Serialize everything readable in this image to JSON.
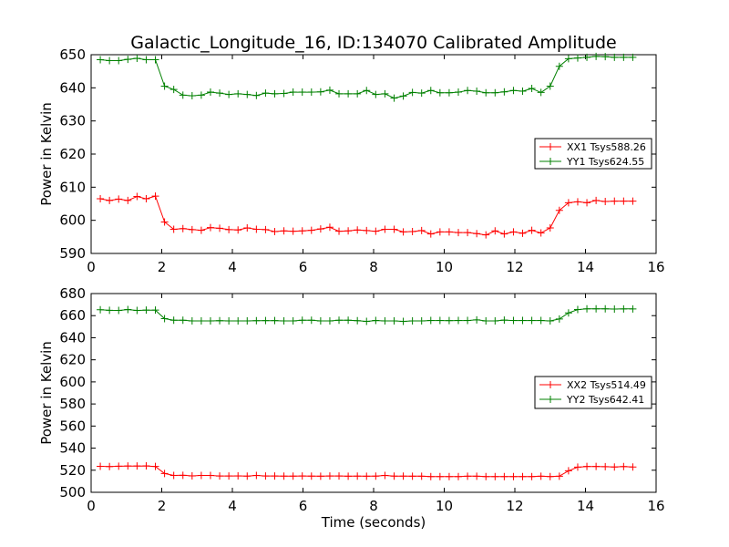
{
  "figure": {
    "title": "Galactic_Longitude_16, ID:134070 Calibrated Amplitude"
  },
  "chart_data": [
    {
      "type": "line",
      "title": "Galactic_Longitude_16, ID:134070 Calibrated Amplitude",
      "xlabel": "",
      "ylabel": "Power in Kelvin",
      "xlim": [
        0,
        16
      ],
      "ylim": [
        590,
        650
      ],
      "xticks": [
        0,
        2,
        4,
        6,
        8,
        10,
        12,
        14,
        16
      ],
      "yticks": [
        590,
        600,
        610,
        620,
        630,
        640,
        650
      ],
      "grid": false,
      "legend_position": "center-right",
      "x": [
        0.26,
        0.52,
        0.78,
        1.04,
        1.3,
        1.56,
        1.82,
        2.08,
        2.34,
        2.6,
        2.86,
        3.12,
        3.38,
        3.64,
        3.9,
        4.16,
        4.42,
        4.68,
        4.94,
        5.2,
        5.46,
        5.72,
        5.98,
        6.24,
        6.5,
        6.76,
        7.02,
        7.28,
        7.54,
        7.8,
        8.06,
        8.32,
        8.58,
        8.84,
        9.1,
        9.36,
        9.62,
        9.88,
        10.14,
        10.4,
        10.66,
        10.92,
        11.18,
        11.44,
        11.7,
        11.96,
        12.22,
        12.48,
        12.74,
        13.0,
        13.26,
        13.52,
        13.78,
        14.04,
        14.3,
        14.56,
        14.82,
        15.08,
        15.34
      ],
      "series": [
        {
          "name": "XX1 Tsys588.26",
          "color": "#ff0000",
          "values": [
            606.5,
            606.0,
            606.4,
            606.0,
            607.2,
            606.5,
            607.3,
            599.5,
            597.3,
            597.5,
            597.2,
            597.0,
            597.8,
            597.6,
            597.2,
            597.1,
            597.7,
            597.3,
            597.2,
            596.6,
            596.8,
            596.7,
            596.8,
            597.0,
            597.4,
            597.9,
            596.7,
            596.8,
            597.1,
            596.9,
            596.7,
            597.3,
            597.3,
            596.5,
            596.6,
            596.9,
            595.9,
            596.5,
            596.5,
            596.3,
            596.3,
            596.0,
            595.6,
            596.8,
            595.9,
            596.5,
            596.1,
            597.0,
            596.2,
            597.7,
            603.0,
            605.3,
            605.6,
            605.3,
            606.0,
            605.7,
            605.8,
            605.8,
            605.8
          ]
        },
        {
          "name": "YY1 Tsys624.55",
          "color": "#008000",
          "values": [
            648.5,
            648.2,
            648.2,
            648.6,
            648.9,
            648.5,
            648.5,
            640.5,
            639.5,
            637.8,
            637.6,
            637.8,
            638.7,
            638.4,
            638.0,
            638.2,
            638.0,
            637.7,
            638.4,
            638.2,
            638.3,
            638.7,
            638.7,
            638.7,
            638.8,
            639.3,
            638.2,
            638.2,
            638.2,
            639.2,
            638.0,
            638.2,
            636.9,
            637.5,
            638.6,
            638.4,
            639.2,
            638.5,
            638.5,
            638.7,
            639.2,
            639.0,
            638.5,
            638.5,
            638.8,
            639.2,
            639.0,
            639.8,
            638.6,
            640.5,
            646.5,
            648.8,
            649.0,
            649.2,
            649.5,
            649.4,
            649.2,
            649.2,
            649.2
          ]
        }
      ]
    },
    {
      "type": "line",
      "title": "",
      "xlabel": "Time (seconds)",
      "ylabel": "Power in Kelvin",
      "xlim": [
        0,
        16
      ],
      "ylim": [
        500,
        680
      ],
      "xticks": [
        0,
        2,
        4,
        6,
        8,
        10,
        12,
        14,
        16
      ],
      "yticks": [
        500,
        520,
        540,
        560,
        580,
        600,
        620,
        640,
        660,
        680
      ],
      "grid": false,
      "legend_position": "center-right",
      "x": [
        0.26,
        0.52,
        0.78,
        1.04,
        1.3,
        1.56,
        1.82,
        2.08,
        2.34,
        2.6,
        2.86,
        3.12,
        3.38,
        3.64,
        3.9,
        4.16,
        4.42,
        4.68,
        4.94,
        5.2,
        5.46,
        5.72,
        5.98,
        6.24,
        6.5,
        6.76,
        7.02,
        7.28,
        7.54,
        7.8,
        8.06,
        8.32,
        8.58,
        8.84,
        9.1,
        9.36,
        9.62,
        9.88,
        10.14,
        10.4,
        10.66,
        10.92,
        11.18,
        11.44,
        11.7,
        11.96,
        12.22,
        12.48,
        12.74,
        13.0,
        13.26,
        13.52,
        13.78,
        14.04,
        14.3,
        14.56,
        14.82,
        15.08,
        15.34
      ],
      "series": [
        {
          "name": "XX2 Tsys514.49",
          "color": "#ff0000",
          "values": [
            523.5,
            523.3,
            523.6,
            523.8,
            523.8,
            523.9,
            523.4,
            517.0,
            515.3,
            515.4,
            514.9,
            515.3,
            515.3,
            514.8,
            514.8,
            514.9,
            514.7,
            515.3,
            514.8,
            514.8,
            514.7,
            514.7,
            514.8,
            514.7,
            514.6,
            514.8,
            514.8,
            514.6,
            514.7,
            514.6,
            514.7,
            515.3,
            514.7,
            514.7,
            514.6,
            514.6,
            514.2,
            514.2,
            514.2,
            514.2,
            514.6,
            514.6,
            514.2,
            514.2,
            514.2,
            514.2,
            514.2,
            514.2,
            514.6,
            514.2,
            514.6,
            519.5,
            522.8,
            523.4,
            523.4,
            523.2,
            522.9,
            523.3,
            522.9
          ]
        },
        {
          "name": "YY2 Tsys642.41",
          "color": "#008000",
          "values": [
            665.3,
            664.8,
            664.7,
            665.5,
            664.7,
            665.0,
            665.0,
            657.3,
            655.8,
            655.8,
            655.2,
            655.2,
            655.2,
            655.4,
            655.2,
            655.2,
            655.2,
            655.4,
            655.5,
            655.5,
            655.2,
            655.2,
            655.8,
            655.9,
            655.2,
            655.2,
            655.8,
            655.8,
            655.4,
            654.8,
            655.6,
            655.2,
            655.2,
            654.8,
            655.2,
            655.2,
            655.6,
            655.6,
            655.5,
            655.6,
            655.6,
            656.2,
            655.2,
            655.2,
            656.0,
            655.6,
            655.6,
            655.6,
            655.6,
            655.2,
            657.0,
            662.5,
            665.5,
            666.2,
            666.2,
            666.2,
            666.0,
            666.1,
            666.1
          ]
        }
      ]
    }
  ]
}
